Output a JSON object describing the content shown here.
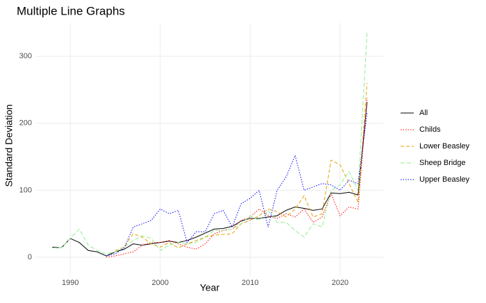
{
  "chart_data": {
    "type": "line",
    "title": "Multiple Line Graphs",
    "x_label": "Year",
    "y_label": "Standard Deviation",
    "x": [
      1988,
      1989,
      1990,
      1991,
      1992,
      1993,
      1994,
      1995,
      1996,
      1997,
      1998,
      1999,
      2000,
      2001,
      2002,
      2003,
      2004,
      2005,
      2006,
      2007,
      2008,
      2009,
      2010,
      2011,
      2012,
      2013,
      2014,
      2015,
      2016,
      2017,
      2018,
      2019,
      2020,
      2021,
      2022,
      2023
    ],
    "series": [
      {
        "name": "All",
        "color": "#000000",
        "dash": "none",
        "values": [
          15,
          14,
          28,
          22,
          10,
          8,
          2,
          8,
          12,
          20,
          18,
          20,
          22,
          24,
          22,
          25,
          30,
          36,
          42,
          43,
          46,
          54,
          58,
          58,
          60,
          62,
          70,
          75,
          73,
          70,
          72,
          96,
          95,
          97,
          93,
          232
        ]
      },
      {
        "name": "Childs",
        "color": "#ff0000",
        "dash": "1.5 2",
        "values": [
          null,
          null,
          null,
          null,
          null,
          null,
          0,
          2,
          5,
          8,
          18,
          22,
          22,
          25,
          20,
          15,
          12,
          20,
          35,
          40,
          42,
          55,
          60,
          72,
          62,
          58,
          65,
          60,
          72,
          52,
          60,
          95,
          62,
          75,
          72,
          238
        ]
      },
      {
        "name": "Lower Beasley",
        "color": "#e69f00",
        "dash": "5 3",
        "values": [
          null,
          null,
          null,
          null,
          null,
          null,
          null,
          10,
          15,
          35,
          30,
          20,
          15,
          22,
          14,
          20,
          25,
          30,
          33,
          34,
          35,
          50,
          55,
          62,
          72,
          68,
          60,
          72,
          92,
          60,
          65,
          145,
          138,
          110,
          82,
          260
        ]
      },
      {
        "name": "Sheep Bridge",
        "color": "#90ee90",
        "dash": "6 3",
        "values": [
          14,
          14,
          28,
          42,
          18,
          10,
          5,
          8,
          15,
          25,
          32,
          28,
          10,
          18,
          22,
          20,
          22,
          30,
          40,
          40,
          42,
          50,
          62,
          55,
          70,
          52,
          52,
          40,
          30,
          50,
          45,
          100,
          108,
          128,
          100,
          335
        ]
      },
      {
        "name": "Upper Beasley",
        "color": "#0000ff",
        "dash": "1.5 2",
        "values": [
          null,
          null,
          null,
          null,
          null,
          null,
          2,
          5,
          14,
          45,
          50,
          55,
          72,
          65,
          70,
          22,
          38,
          38,
          65,
          70,
          45,
          80,
          88,
          100,
          45,
          100,
          120,
          152,
          100,
          105,
          110,
          108,
          100,
          115,
          110,
          215
        ]
      }
    ],
    "xlim": [
      1986.2,
      2024.8
    ],
    "xticks": [
      1990,
      2000,
      2010,
      2020
    ],
    "ylim": [
      -28,
      350
    ],
    "yticks": [
      0,
      100,
      200,
      300
    ],
    "grid": true,
    "legend": "right"
  }
}
